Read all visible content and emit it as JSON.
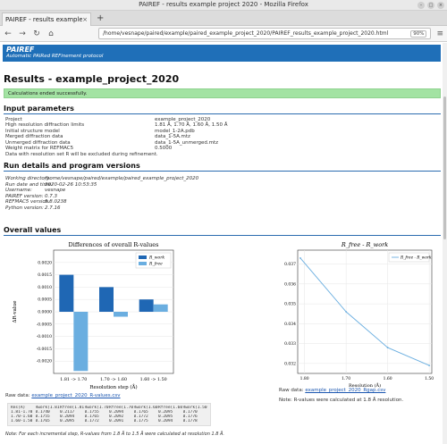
{
  "window": {
    "title": "PAIREF - results example project 2020 - Mozilla Firefox"
  },
  "tab": {
    "label": "PAIREF - results example pr",
    "close": "×",
    "new": "+"
  },
  "nav": {
    "back": "←",
    "forward": "→",
    "reload": "↻",
    "home": "⌂",
    "url": "/home/vesnape/paired/example/paired_example_project_2020/PAIREF_results_example_project_2020.html",
    "zoom": "90%",
    "menu": "≡"
  },
  "banner": {
    "title": "PAIREF",
    "subtitle": "Automatic PAIRed REFinement protocol"
  },
  "heading": "Results - example_project_2020",
  "alert": "Calculations ended successfully.",
  "input_params": {
    "title": "Input parameters",
    "rows": [
      {
        "k": "Project",
        "v": "example_project_2020"
      },
      {
        "k": "High resolution diffraction limits",
        "v": "1.81 Å, 1.70 Å, 1.60 Å, 1.50 Å"
      },
      {
        "k": "Initial structure model",
        "v": "model_1-2A.pdb"
      },
      {
        "k": "Merged diffraction data",
        "v": "data_1-5A.mtz"
      },
      {
        "k": "Unmerged diffraction data",
        "v": "data_1-5A_unmerged.mtz"
      },
      {
        "k": "Weight matrix for REFMAC5",
        "v": "0.5000"
      }
    ],
    "note": "Data with resolution set R will be excluded during refinement."
  },
  "run_details": {
    "title": "Run details and program versions",
    "rows": [
      {
        "k": "Working directory:",
        "v": "/home/vesnape/paired/example/paired_example_project_2020"
      },
      {
        "k": "Run date and time:",
        "v": "2020-02-26 10:53:35"
      },
      {
        "k": "Username:",
        "v": "vesnape"
      },
      {
        "k": "PAIREF version:",
        "v": "0.7.3"
      },
      {
        "k": "REFMAC5 version:",
        "v": "5.8.0238"
      },
      {
        "k": "Python version:",
        "v": "2.7.16"
      }
    ]
  },
  "overall": {
    "title": "Overall values"
  },
  "chart_data": [
    {
      "type": "bar",
      "title": "Differences of overall R-values",
      "xlabel": "Resolution step (Å)",
      "ylabel": "ΔR-value",
      "categories": [
        "1.81 -> 1.70",
        "1.70 -> 1.60",
        "1.60 -> 1.50"
      ],
      "ylim": [
        -0.0025,
        0.0025
      ],
      "yticks": [
        "0.0020",
        "0.0015",
        "0.0010",
        "0.0005",
        "0.0000",
        "-0.0005",
        "-0.0010",
        "-0.0015",
        "-0.0020"
      ],
      "series": [
        {
          "name": "R_work",
          "color": "#1f67b4",
          "values": [
            0.0015,
            0.001,
            0.0005
          ]
        },
        {
          "name": "R_free",
          "color": "#6aaee0",
          "values": [
            -0.0024,
            -0.0002,
            0.0003
          ]
        }
      ],
      "legend": "top-right",
      "grid": true
    },
    {
      "type": "line",
      "title": "R_free - R_work",
      "xlabel": "Resolution (Å)",
      "ylabel": "",
      "x": [
        1.81,
        1.7,
        1.6,
        1.5
      ],
      "xticks": [
        "1.80",
        "1.70",
        "1.60",
        "1.50"
      ],
      "yticks": [
        "0.037",
        "0.036",
        "0.035",
        "0.034",
        "0.033",
        "0.032"
      ],
      "ylim": [
        0.0315,
        0.0377
      ],
      "series": [
        {
          "name": "R_free - R_work",
          "color": "#6aaee0",
          "values": [
            0.0373,
            0.0346,
            0.0328,
            0.0319
          ]
        }
      ],
      "legend": "top-right",
      "grid": true
    }
  ],
  "captions": {
    "left_prefix": "Raw data:",
    "left_link": "example_project_2020_R-values.csv",
    "right_prefix": "Raw data:",
    "right_link": "example_project_2020_Rgap.csv",
    "right_note": "Note: R-values were calculated at 1.8 Å resolution."
  },
  "table": {
    "header": [
      "Res(Å)",
      "Rwork(1.81)",
      "Rfree(1.81)",
      "Rwork(1.70)",
      "Rfree(1.70)",
      "Rwork(1.60)",
      "Rfree(1.60)",
      "Rwork(1.50)"
    ],
    "rows": [
      [
        "1.81-1.70",
        "0.1740",
        "0.2117",
        "0.1755",
        "0.2094",
        "0.1765",
        "0.2095",
        "0.1770"
      ],
      [
        "1.70-1.60",
        "0.1755",
        "0.2094",
        "0.1765",
        "0.2092",
        "0.1772",
        "0.2095",
        "0.1776"
      ],
      [
        "1.60-1.50",
        "0.1765",
        "0.2095",
        "0.1772",
        "0.2091",
        "0.1775",
        "0.2094",
        "0.1778"
      ]
    ]
  },
  "footnote": "Note: For each incremental step, R-values from 1.8 Å to 1.5 Å were calculated at resolution 1.8 Å."
}
